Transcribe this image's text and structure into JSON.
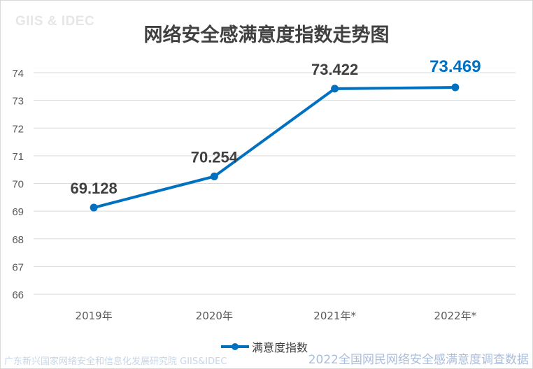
{
  "header": {
    "watermark": "GIIS & IDEC"
  },
  "footer": {
    "left": "广东新兴国家网络安全和信息化发展研究院  GIIS&IDEC",
    "right": "2022全国网民网络安全感满意度调查数据"
  },
  "colors": {
    "series": "#0070c0",
    "highlight_label": "#0070c0",
    "label": "#404040",
    "grid": "#d9d9d9"
  },
  "chart_data": {
    "type": "line",
    "title": "网络安全感满意度指数走势图",
    "categories": [
      "2019年",
      "2020年",
      "2021年*",
      "2022年*"
    ],
    "series": [
      {
        "name": "满意度指数",
        "values": [
          69.128,
          70.254,
          73.422,
          73.469
        ]
      }
    ],
    "data_labels": [
      "69.128",
      "70.254",
      "73.422",
      "73.469"
    ],
    "highlighted_index": 3,
    "ylim": [
      66,
      74
    ],
    "yticks": [
      66,
      67,
      68,
      69,
      70,
      71,
      72,
      73,
      74
    ],
    "grid": true,
    "legend": "bottom",
    "xlabel": "",
    "ylabel": ""
  }
}
